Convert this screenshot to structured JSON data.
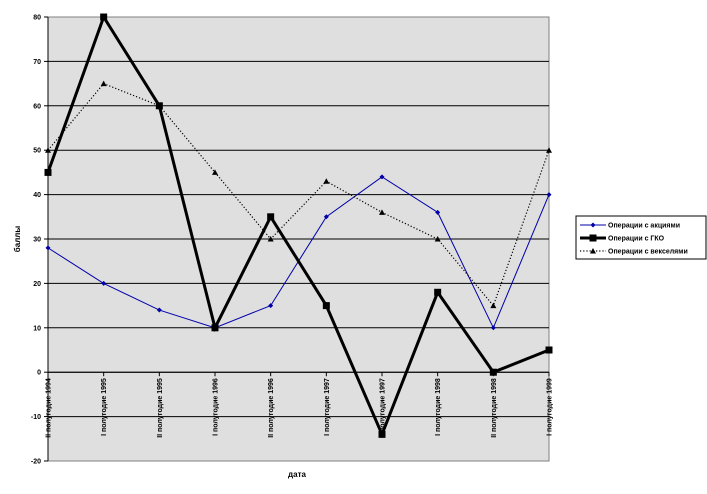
{
  "chart_data": {
    "type": "line",
    "title": "",
    "xlabel": "дата",
    "ylabel": "баллы",
    "ylim": [
      -20,
      80
    ],
    "yticks": [
      -20,
      -10,
      0,
      10,
      20,
      30,
      40,
      50,
      60,
      70,
      80
    ],
    "grid": true,
    "legend_position": "right",
    "plot_background": "#dfdfdf",
    "categories": [
      "II полугодие 1994",
      "I полугодие 1995",
      "II полугодие 1995",
      "I полугодие 1996",
      "II полугодие 1996",
      "I полугодие 1997",
      "II полугодие 1997",
      "I полугодие 1998",
      "II полугодие 1998",
      "I полугодие 1999"
    ],
    "series": [
      {
        "name": "Операции с акциями",
        "color": "#0000aa",
        "marker": "diamond",
        "line": "solid-thin",
        "values": [
          28,
          20,
          14,
          10,
          15,
          35,
          44,
          36,
          10,
          40
        ]
      },
      {
        "name": "Операции с ГКО",
        "color": "#000000",
        "marker": "square",
        "line": "solid-thick",
        "values": [
          45,
          80,
          60,
          10,
          35,
          15,
          -14,
          18,
          0,
          5
        ]
      },
      {
        "name": "Операции с векселями",
        "color": "#000000",
        "marker": "triangle",
        "line": "dotted",
        "values": [
          50,
          65,
          60,
          45,
          30,
          43,
          36,
          30,
          15,
          50
        ]
      }
    ]
  }
}
